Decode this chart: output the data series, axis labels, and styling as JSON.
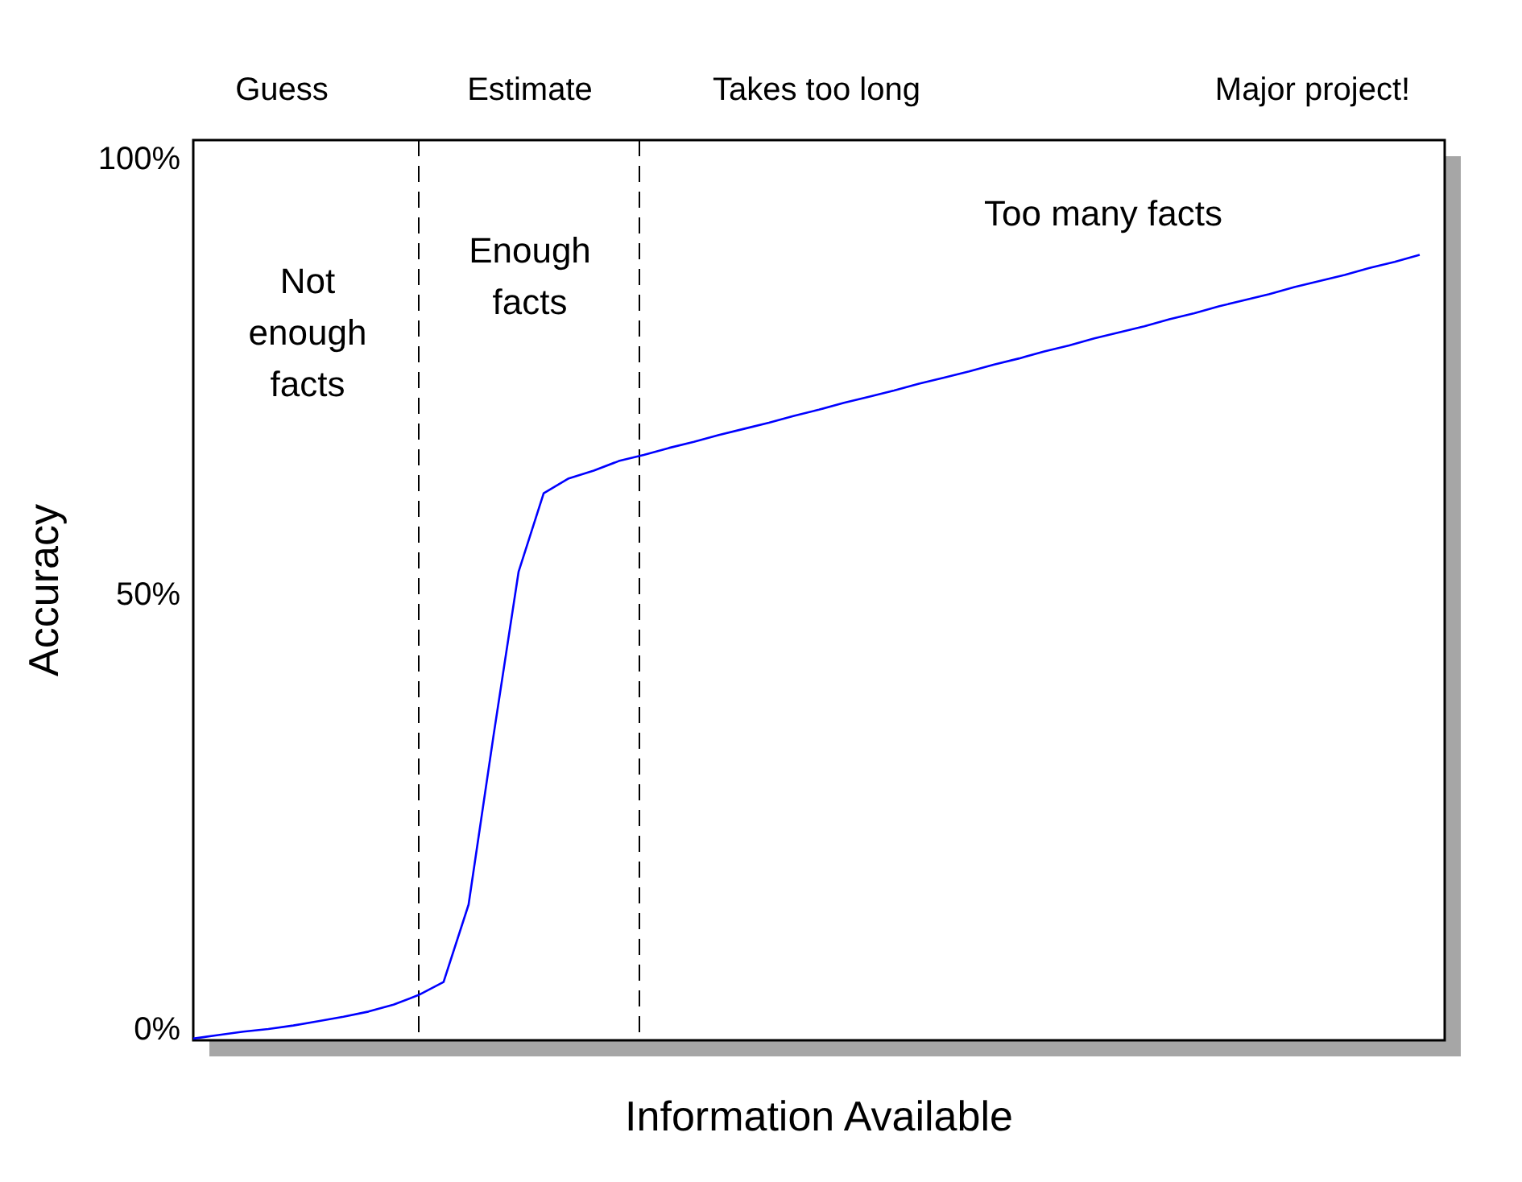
{
  "chart_data": {
    "type": "line",
    "xlabel": "Information Available",
    "ylabel": "Accuracy",
    "categories": [
      null,
      null,
      null,
      null,
      null,
      null,
      null,
      null,
      null,
      null,
      null,
      null,
      null,
      null,
      null,
      null,
      null,
      null,
      null,
      null,
      null,
      null,
      null,
      null,
      null,
      null,
      null,
      null,
      null,
      null,
      null,
      null,
      null,
      null,
      null,
      null,
      null,
      null,
      null,
      null,
      null,
      null,
      null,
      null,
      null,
      null,
      null,
      null,
      null,
      null
    ],
    "series": [
      {
        "color": "#0000ff",
        "values": [
          -0.9,
          -0.5,
          -0.1,
          0.2,
          0.6,
          1.1,
          1.6,
          2.2,
          3.0,
          4.1,
          5.6,
          14.5,
          34,
          52.8,
          61.8,
          63.5,
          64.4,
          65.5,
          66.2,
          67.0,
          67.7,
          68.5,
          69.2,
          69.9,
          70.7,
          71.4,
          72.2,
          72.9,
          73.6,
          74.4,
          75.1,
          75.8,
          76.6,
          77.3,
          78.1,
          78.8,
          79.6,
          80.3,
          81.0,
          81.8,
          82.5,
          83.3,
          84.0,
          84.7,
          85.5,
          86.2,
          86.9,
          87.7,
          88.4,
          89.2
        ]
      }
    ],
    "ylim": [
      -1.1,
      102.4
    ],
    "yticks": [
      {
        "value": 0,
        "label": "0%"
      },
      {
        "value": 50,
        "label": "50%"
      },
      {
        "value": 100,
        "label": "100%"
      }
    ],
    "tick_labels": "y",
    "grid": false,
    "marker": "none",
    "line_style": "solid",
    "annotations": [
      "Guess",
      "Estimate",
      "Takes too long",
      "Major project!",
      "Not\nenough\nfacts",
      "Enough\nfacts",
      "Too many facts"
    ]
  }
}
